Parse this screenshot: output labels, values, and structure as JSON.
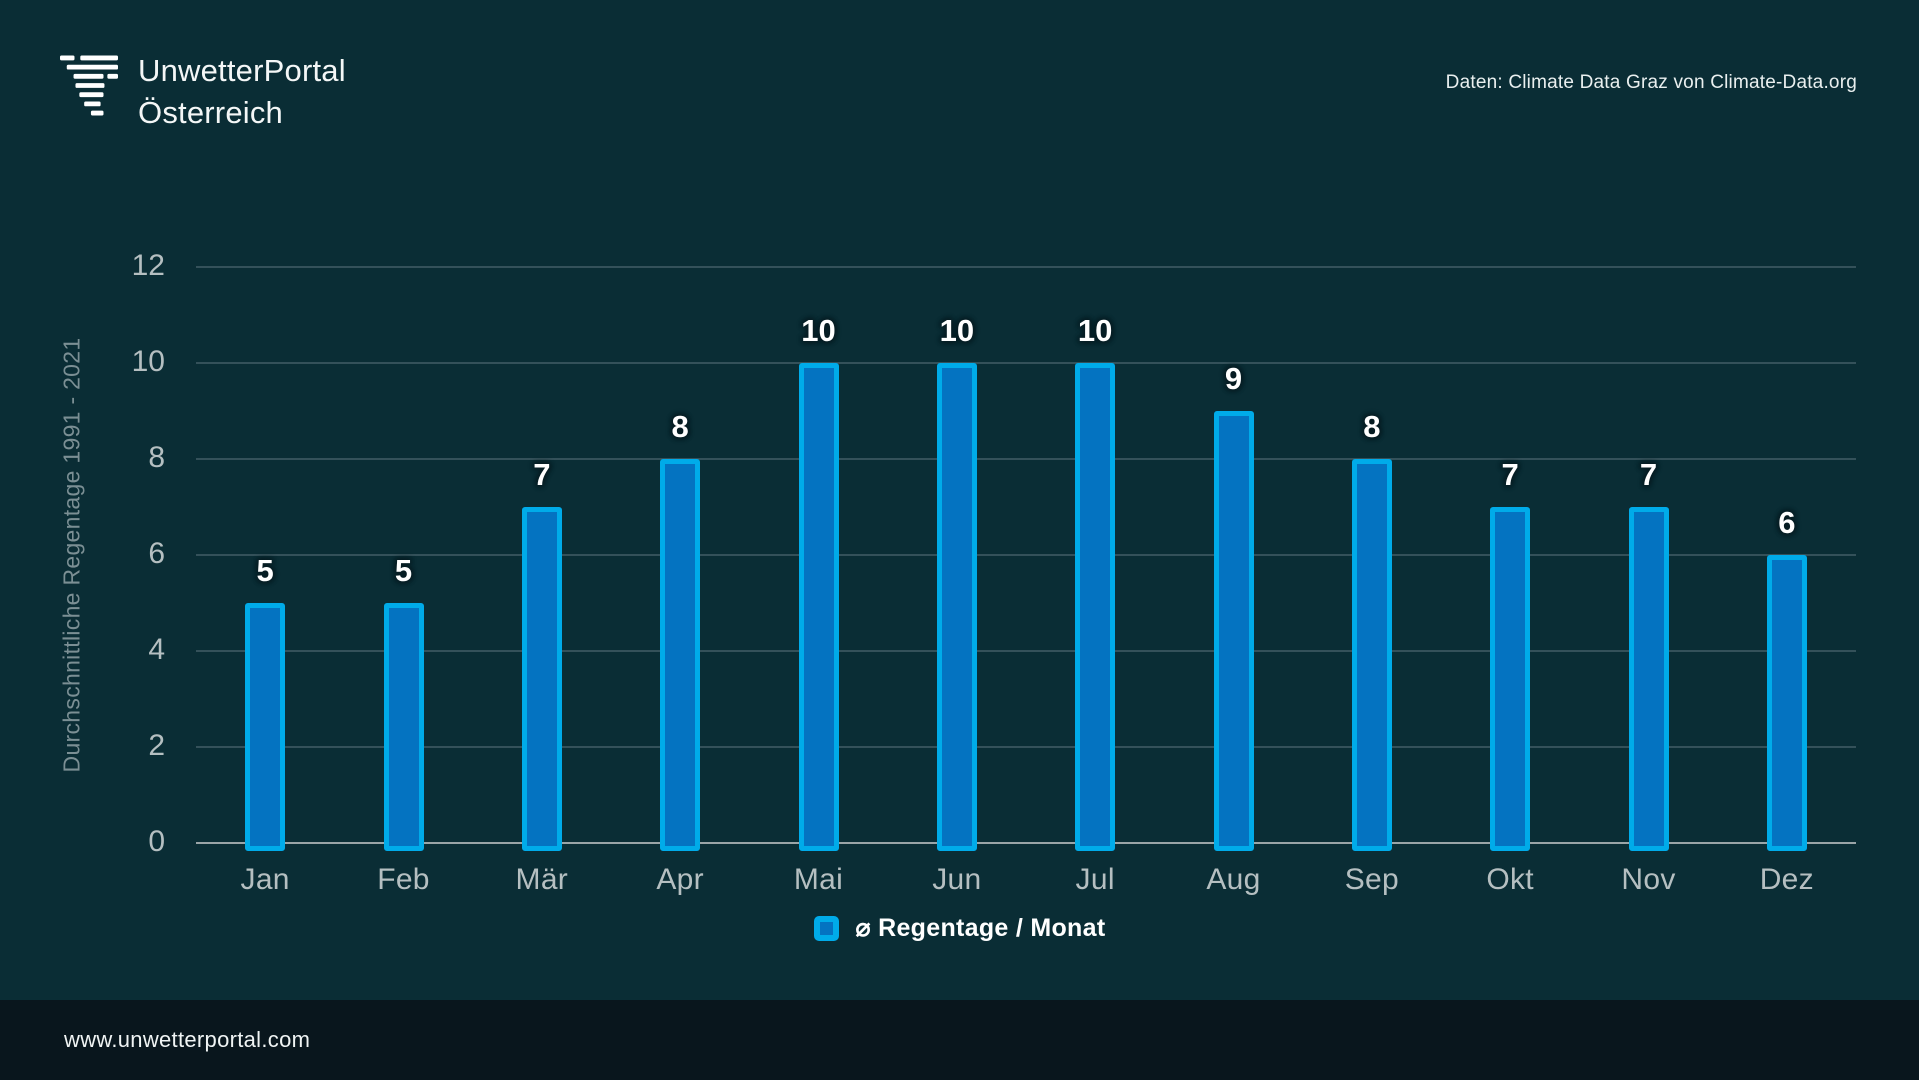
{
  "header": {
    "logo_line1": "UnwetterPortal",
    "logo_line2": "Österreich",
    "source_note": "Daten: Climate Data Graz von Climate-Data.org"
  },
  "chart_data": {
    "type": "bar",
    "categories": [
      "Jan",
      "Feb",
      "Mär",
      "Apr",
      "Mai",
      "Jun",
      "Jul",
      "Aug",
      "Sep",
      "Okt",
      "Nov",
      "Dez"
    ],
    "values": [
      5,
      5,
      7,
      8,
      10,
      10,
      10,
      9,
      8,
      7,
      7,
      6
    ],
    "title": "",
    "xlabel": "",
    "ylabel": "Durchschnittliche Regentage 1991 - 2021",
    "ylim": [
      0,
      12
    ],
    "yticks": [
      0,
      2,
      4,
      6,
      8,
      10,
      12
    ],
    "grid": true,
    "legend_label": "⌀ Regentage / Monat",
    "legend_position": "bottom",
    "bar_fill_color": "#0473c1",
    "bar_border_color": "#00abe9"
  },
  "colors": {
    "background": "#0a2d35",
    "footer_background": "#09161d",
    "gridline": "#34515a",
    "zero_line": "#9aa5a8",
    "axis_text": "#b5bfc1",
    "axis_title_text": "#7b8f94",
    "value_label_text": "#ffffff"
  },
  "footer": {
    "url": "www.unwetterportal.com"
  }
}
